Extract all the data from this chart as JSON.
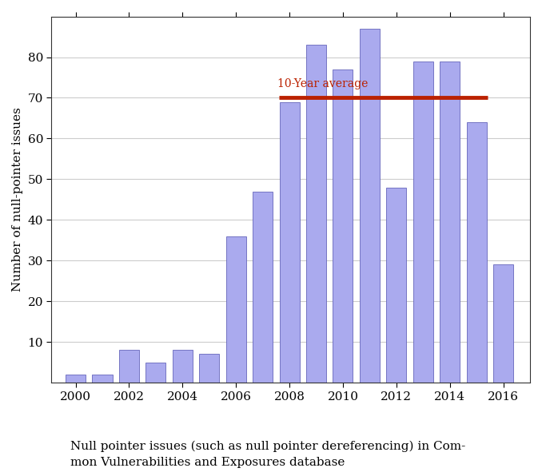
{
  "years": [
    2000,
    2001,
    2002,
    2003,
    2004,
    2005,
    2006,
    2007,
    2008,
    2009,
    2010,
    2011,
    2012,
    2013,
    2014,
    2015,
    2016
  ],
  "values": [
    2,
    2,
    8,
    5,
    8,
    7,
    36,
    47,
    69,
    83,
    77,
    87,
    48,
    79,
    79,
    64,
    29
  ],
  "bar_color": "#aaaaee",
  "bar_edge_color": "#6666bb",
  "average_value": 70,
  "average_color": "#bb2200",
  "average_label": "10-Year average",
  "average_line_start": 2007.6,
  "average_line_end": 2015.4,
  "ylabel": "Number of null-pointer issues",
  "caption_line1": "Null pointer issues (such as null pointer dereferencing) in Com-",
  "caption_line2": "mon Vulnerabilities and Exposures database",
  "ylim": [
    0,
    90
  ],
  "yticks": [
    10,
    20,
    30,
    40,
    50,
    60,
    70,
    80
  ],
  "xtick_years": [
    2000,
    2002,
    2004,
    2006,
    2008,
    2010,
    2012,
    2014,
    2016
  ],
  "xlim": [
    1999.1,
    2017.0
  ],
  "background_color": "#ffffff",
  "grid_color": "#cccccc",
  "caption_fontsize": 11,
  "axis_fontsize": 11,
  "tick_fontsize": 11,
  "label_fontsize": 10
}
